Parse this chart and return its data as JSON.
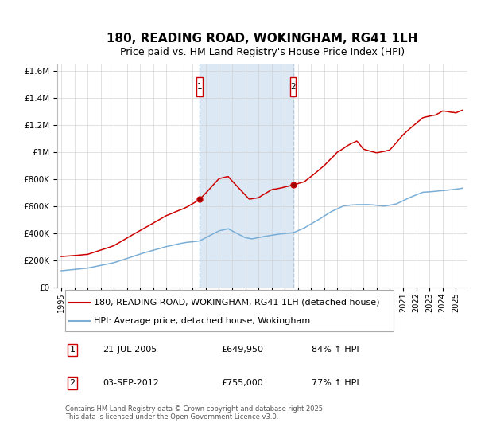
{
  "title": "180, READING ROAD, WOKINGHAM, RG41 1LH",
  "subtitle": "Price paid vs. HM Land Registry's House Price Index (HPI)",
  "ylim": [
    0,
    1650000
  ],
  "yticks": [
    0,
    200000,
    400000,
    600000,
    800000,
    1000000,
    1200000,
    1400000,
    1600000
  ],
  "ytick_labels": [
    "£0",
    "£200K",
    "£400K",
    "£600K",
    "£800K",
    "£1M",
    "£1.2M",
    "£1.4M",
    "£1.6M"
  ],
  "xmin": 1994.7,
  "xmax": 2025.9,
  "line1_color": "#cc0000",
  "line2_color": "#7aaed6",
  "line1_label": "180, READING ROAD, WOKINGHAM, RG41 1LH (detached house)",
  "line2_label": "HPI: Average price, detached house, Wokingham",
  "marker1_year": 2005.55,
  "marker2_year": 2012.67,
  "marker1_price": 649950,
  "marker2_price": 755000,
  "highlight_color": "#dce9f5",
  "vline_color": "#aec6d8",
  "grid_color": "#cccccc",
  "bg_color": "#ffffff",
  "title_fontsize": 11,
  "subtitle_fontsize": 9,
  "tick_fontsize": 7.5,
  "legend_fontsize": 8,
  "footnote": "Contains HM Land Registry data © Crown copyright and database right 2025.\nThis data is licensed under the Open Government Licence v3.0."
}
